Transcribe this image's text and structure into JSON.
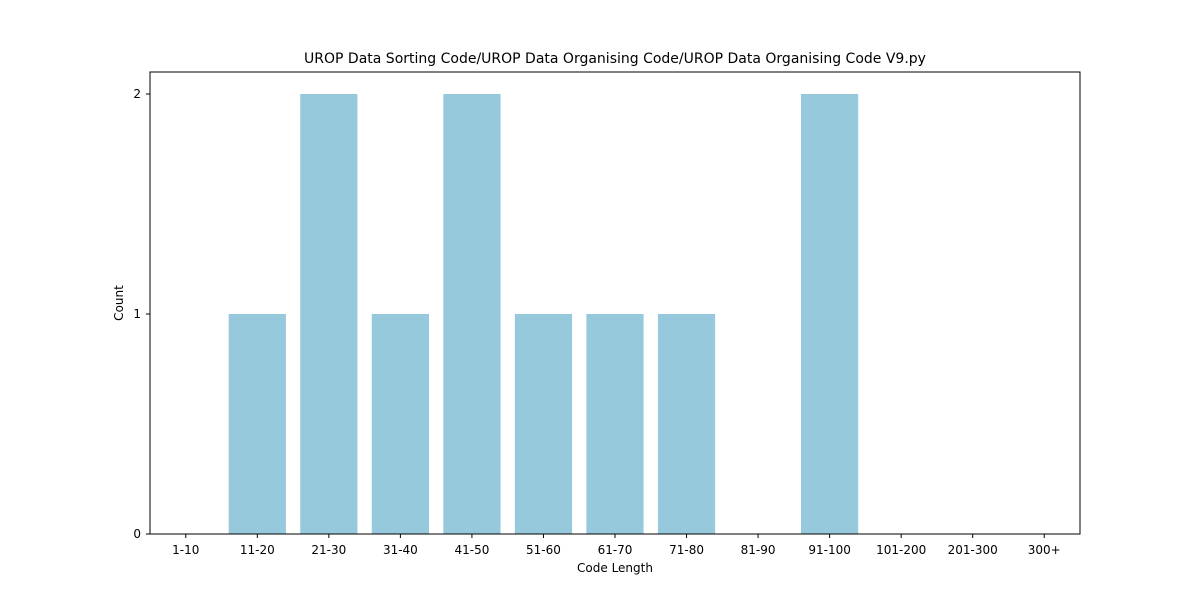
{
  "chart_data": {
    "type": "bar",
    "title": "UROP Data Sorting Code/UROP Data Organising Code/UROP Data Organising Code V9.py",
    "xlabel": "Code Length",
    "ylabel": "Count",
    "categories": [
      "1-10",
      "11-20",
      "21-30",
      "31-40",
      "41-50",
      "51-60",
      "61-70",
      "71-80",
      "81-90",
      "91-100",
      "101-200",
      "201-300",
      "300+"
    ],
    "values": [
      0,
      1,
      2,
      1,
      2,
      1,
      1,
      1,
      0,
      2,
      0,
      0,
      0
    ],
    "ylim": [
      0,
      2.1
    ],
    "yticks": [
      0,
      1,
      2
    ],
    "grid": false,
    "legend": "none",
    "bar_color": "#96c9dc",
    "axis_color": "#000000"
  }
}
